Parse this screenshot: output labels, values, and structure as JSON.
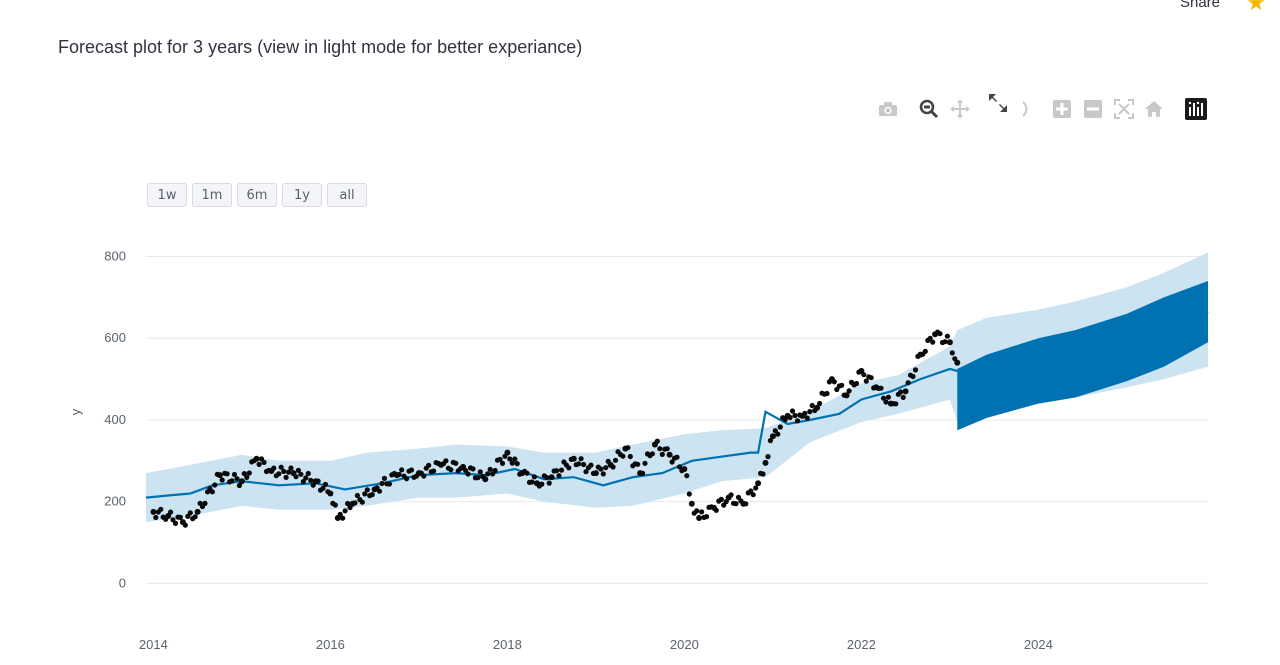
{
  "header": {
    "share_label": "Share",
    "star_icon": "star-icon"
  },
  "page_title": "Forecast plot for 3 years (view in light mode for better experiance)",
  "modebar": {
    "buttons": [
      "camera-icon",
      "zoom-icon",
      "pan-icon",
      "autoscale-icon",
      "lasso-icon",
      "zoom-in-icon",
      "zoom-out-icon",
      "reset-axes-icon",
      "home-icon",
      "plotly-logo-icon"
    ]
  },
  "range_selector": {
    "buttons": [
      "1w",
      "1m",
      "6m",
      "1y",
      "all"
    ]
  },
  "colors": {
    "actual": "#0a0a0a",
    "forecast": "#0072b2",
    "band": "#c6e0f0",
    "grid": "#e6e8ec"
  },
  "chart_data": {
    "type": "line",
    "ylabel": "y",
    "ylim": [
      -70,
      860
    ],
    "xlim": [
      "2013-12",
      "2025-12"
    ],
    "x_ticks": [
      "2014",
      "2016",
      "2018",
      "2020",
      "2022",
      "2024"
    ],
    "y_ticks": [
      0,
      200,
      400,
      600,
      800
    ],
    "grid": true,
    "series": [
      {
        "style": "markers",
        "x": [
          "2014-01",
          "2014-03",
          "2014-05",
          "2014-07",
          "2014-10",
          "2015-01",
          "2015-03",
          "2015-05",
          "2015-08",
          "2015-11",
          "2016-01",
          "2016-02",
          "2016-04",
          "2016-07",
          "2016-10",
          "2017-01",
          "2017-04",
          "2017-07",
          "2017-10",
          "2018-01",
          "2018-03",
          "2018-05",
          "2018-07",
          "2018-10",
          "2019-01",
          "2019-03",
          "2019-05",
          "2019-07",
          "2019-09",
          "2019-11",
          "2020-01",
          "2020-02",
          "2020-03",
          "2020-05",
          "2020-07",
          "2020-09",
          "2020-11",
          "2020-12",
          "2021-01",
          "2021-03",
          "2021-05",
          "2021-07",
          "2021-09",
          "2021-11",
          "2022-01",
          "2022-03",
          "2022-05",
          "2022-07",
          "2022-09",
          "2022-11",
          "2023-01",
          "2023-02"
        ],
        "y": [
          175,
          165,
          150,
          175,
          265,
          250,
          305,
          275,
          270,
          250,
          220,
          160,
          195,
          230,
          265,
          270,
          290,
          285,
          255,
          320,
          270,
          245,
          260,
          305,
          270,
          290,
          330,
          270,
          340,
          315,
          280,
          195,
          160,
          185,
          210,
          195,
          245,
          295,
          360,
          410,
          410,
          430,
          500,
          460,
          520,
          480,
          440,
          470,
          560,
          610,
          590,
          540
        ]
      },
      {
        "style": "line",
        "x": [
          "2013-12",
          "2014-03",
          "2014-06",
          "2014-09",
          "2015-01",
          "2015-06",
          "2015-11",
          "2016-03",
          "2016-08",
          "2017-01",
          "2017-06",
          "2017-10",
          "2018-02",
          "2018-06",
          "2018-10",
          "2019-02",
          "2019-06",
          "2019-10",
          "2020-02",
          "2020-06",
          "2020-10",
          "2020-11",
          "2020-12",
          "2021-03",
          "2021-06",
          "2021-10",
          "2022-01",
          "2022-05",
          "2022-09",
          "2023-01",
          "2023-04",
          "2023-08",
          "2024-01",
          "2024-06",
          "2024-10",
          "2025-03",
          "2025-08",
          "2025-12"
        ],
        "y": [
          210,
          215,
          220,
          240,
          250,
          240,
          245,
          230,
          245,
          265,
          270,
          265,
          280,
          255,
          260,
          240,
          260,
          270,
          300,
          310,
          320,
          320,
          420,
          390,
          400,
          415,
          450,
          470,
          500,
          525,
          510,
          530,
          545,
          560,
          575,
          600,
          625,
          665
        ]
      }
    ],
    "band": {
      "x": [
        "2013-12",
        "2014-06",
        "2015-01",
        "2015-06",
        "2016-01",
        "2016-06",
        "2017-01",
        "2017-06",
        "2018-01",
        "2018-06",
        "2019-01",
        "2019-06",
        "2020-01",
        "2020-06",
        "2020-12",
        "2021-06",
        "2022-01",
        "2022-06",
        "2023-01",
        "2023-02",
        "2023-06",
        "2024-01",
        "2024-06",
        "2025-01",
        "2025-06",
        "2025-12"
      ],
      "upper": [
        270,
        290,
        315,
        300,
        300,
        320,
        330,
        340,
        335,
        320,
        320,
        340,
        365,
        375,
        380,
        420,
        490,
        510,
        580,
        620,
        650,
        670,
        690,
        725,
        760,
        810
      ],
      "lower": [
        150,
        165,
        190,
        180,
        180,
        190,
        210,
        210,
        220,
        200,
        185,
        190,
        220,
        250,
        260,
        345,
        395,
        415,
        450,
        395,
        420,
        440,
        455,
        480,
        500,
        530
      ]
    },
    "forecast_region": {
      "x": [
        "2023-02",
        "2023-06",
        "2024-01",
        "2024-06",
        "2025-01",
        "2025-06",
        "2025-12"
      ],
      "upper": [
        525,
        560,
        600,
        620,
        660,
        700,
        740
      ],
      "lower": [
        375,
        405,
        440,
        455,
        495,
        530,
        590
      ]
    }
  }
}
